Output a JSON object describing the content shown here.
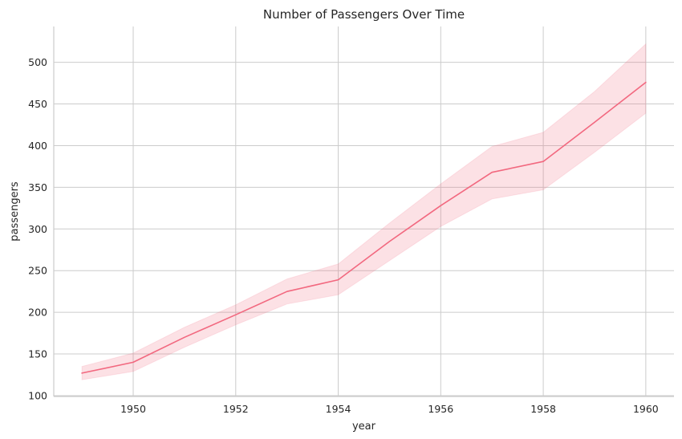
{
  "chart_data": {
    "type": "line",
    "title": "Number of Passengers Over Time",
    "xlabel": "year",
    "ylabel": "passengers",
    "x": [
      1949,
      1950,
      1951,
      1952,
      1953,
      1954,
      1955,
      1956,
      1957,
      1958,
      1959,
      1960
    ],
    "series": [
      {
        "values": [
          127,
          140,
          170,
          197,
          225,
          239,
          285,
          328,
          368,
          381,
          428,
          476
        ],
        "ci_low": [
          119,
          129,
          158,
          185,
          210,
          221,
          262,
          303,
          336,
          347,
          392,
          439
        ],
        "ci_high": [
          135,
          151,
          182,
          209,
          240,
          258,
          307,
          354,
          399,
          416,
          465,
          522
        ]
      }
    ],
    "xticks": [
      "1950",
      "1952",
      "1954",
      "1956",
      "1958",
      "1960"
    ],
    "yticks": [
      "100",
      "150",
      "200",
      "250",
      "300",
      "350",
      "400",
      "450",
      "500"
    ],
    "xlim": [
      1948.45,
      1960.55
    ],
    "ylim": [
      99,
      543
    ],
    "grid": true,
    "colors": {
      "line": "#f2687f",
      "band": "#f2687f"
    }
  }
}
